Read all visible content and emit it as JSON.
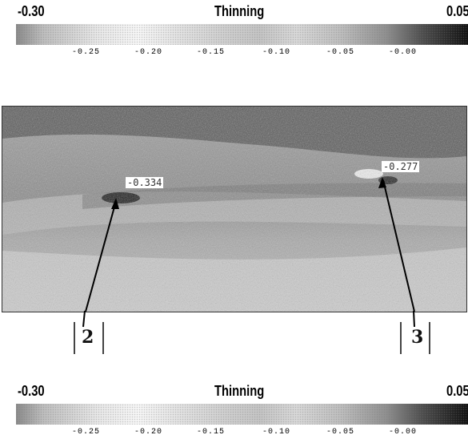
{
  "legend_top": {
    "title": "Thinning",
    "min_label": "-0.30",
    "max_label": "0.05",
    "ticks": [
      "-0.25",
      "-0.20",
      "-0.15",
      "-0.10",
      "-0.05",
      "-0.00"
    ]
  },
  "legend_bottom": {
    "title": "Thinning",
    "min_label": "-0.30",
    "max_label": "0.05",
    "ticks": [
      "-0.25",
      "-0.20",
      "-0.15",
      "-0.10",
      "-0.05",
      "-0.00"
    ]
  },
  "photo": {
    "callouts": [
      {
        "label": "-0.334"
      },
      {
        "label": "-0.277"
      }
    ],
    "markers": [
      {
        "label": "2"
      },
      {
        "label": "3"
      }
    ]
  }
}
